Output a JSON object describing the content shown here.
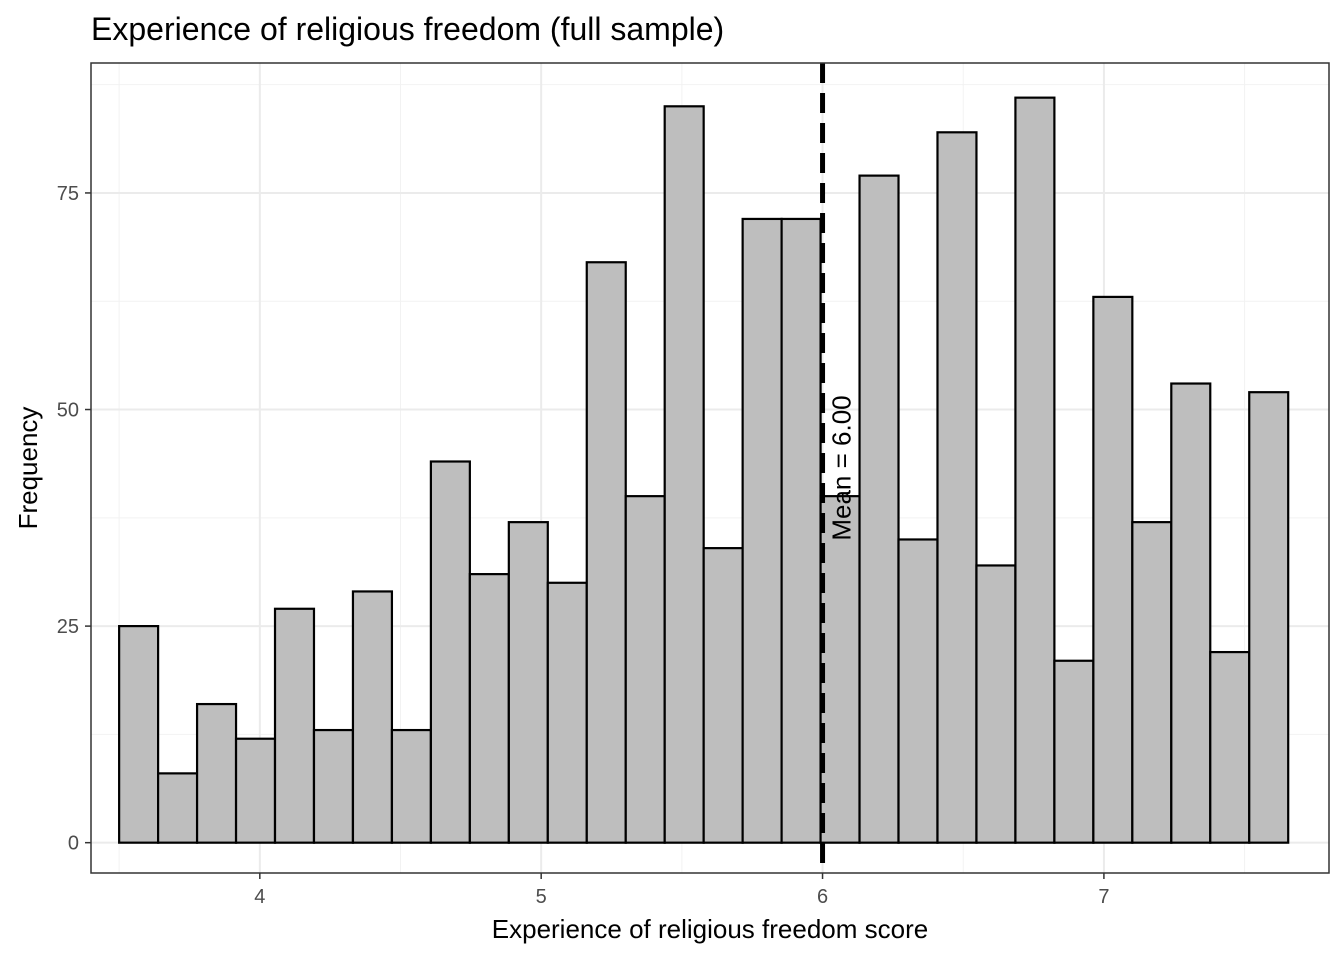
{
  "chart_data": {
    "type": "bar",
    "title": "Experience of religious freedom (full sample)",
    "xlabel": "Experience of religious freedom score",
    "ylabel": "Frequency",
    "xlim": [
      3.4,
      7.8
    ],
    "ylim": [
      -3.5,
      90
    ],
    "x_ticks": [
      4,
      5,
      6,
      7
    ],
    "x_tick_labels": [
      "4",
      "5",
      "6",
      "7"
    ],
    "y_ticks": [
      0,
      25,
      50,
      75
    ],
    "y_tick_labels": [
      "0",
      "25",
      "50",
      "75"
    ],
    "grid": true,
    "bin_width": 0.1385,
    "bin_start": 3.5,
    "values": [
      25,
      8,
      16,
      12,
      27,
      13,
      29,
      13,
      44,
      31,
      37,
      30,
      67,
      40,
      85,
      34,
      72,
      72,
      40,
      77,
      35,
      82,
      32,
      86,
      21,
      63,
      37,
      53,
      22,
      52
    ],
    "bar_fill": "#bebebe",
    "bar_stroke": "#000000",
    "mean_line": {
      "x": 6.0,
      "label": "Mean = 6.00",
      "style": "dashed",
      "color": "#000000"
    }
  }
}
